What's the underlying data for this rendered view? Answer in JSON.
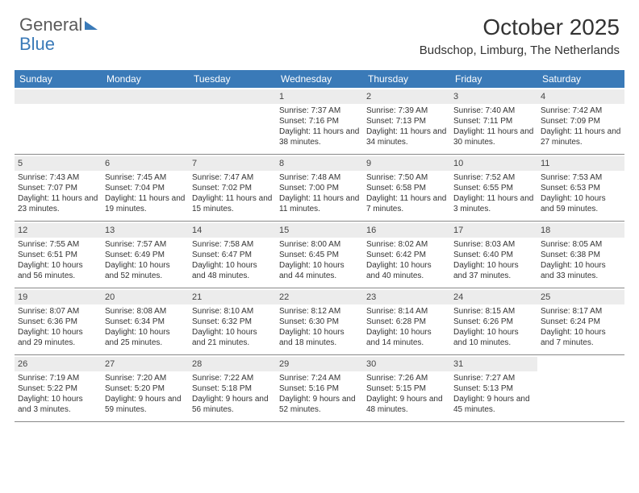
{
  "logo": {
    "text1": "General",
    "text2": "Blue"
  },
  "title": "October 2025",
  "location": "Budschop, Limburg, The Netherlands",
  "colors": {
    "header_bg": "#3a7ab8",
    "header_text": "#ffffff",
    "daynum_bg": "#ececec",
    "text": "#333333",
    "border": "#888888"
  },
  "dayNames": [
    "Sunday",
    "Monday",
    "Tuesday",
    "Wednesday",
    "Thursday",
    "Friday",
    "Saturday"
  ],
  "weeks": [
    [
      null,
      null,
      null,
      {
        "n": "1",
        "sr": "Sunrise: 7:37 AM",
        "ss": "Sunset: 7:16 PM",
        "dl": "Daylight: 11 hours and 38 minutes."
      },
      {
        "n": "2",
        "sr": "Sunrise: 7:39 AM",
        "ss": "Sunset: 7:13 PM",
        "dl": "Daylight: 11 hours and 34 minutes."
      },
      {
        "n": "3",
        "sr": "Sunrise: 7:40 AM",
        "ss": "Sunset: 7:11 PM",
        "dl": "Daylight: 11 hours and 30 minutes."
      },
      {
        "n": "4",
        "sr": "Sunrise: 7:42 AM",
        "ss": "Sunset: 7:09 PM",
        "dl": "Daylight: 11 hours and 27 minutes."
      }
    ],
    [
      {
        "n": "5",
        "sr": "Sunrise: 7:43 AM",
        "ss": "Sunset: 7:07 PM",
        "dl": "Daylight: 11 hours and 23 minutes."
      },
      {
        "n": "6",
        "sr": "Sunrise: 7:45 AM",
        "ss": "Sunset: 7:04 PM",
        "dl": "Daylight: 11 hours and 19 minutes."
      },
      {
        "n": "7",
        "sr": "Sunrise: 7:47 AM",
        "ss": "Sunset: 7:02 PM",
        "dl": "Daylight: 11 hours and 15 minutes."
      },
      {
        "n": "8",
        "sr": "Sunrise: 7:48 AM",
        "ss": "Sunset: 7:00 PM",
        "dl": "Daylight: 11 hours and 11 minutes."
      },
      {
        "n": "9",
        "sr": "Sunrise: 7:50 AM",
        "ss": "Sunset: 6:58 PM",
        "dl": "Daylight: 11 hours and 7 minutes."
      },
      {
        "n": "10",
        "sr": "Sunrise: 7:52 AM",
        "ss": "Sunset: 6:55 PM",
        "dl": "Daylight: 11 hours and 3 minutes."
      },
      {
        "n": "11",
        "sr": "Sunrise: 7:53 AM",
        "ss": "Sunset: 6:53 PM",
        "dl": "Daylight: 10 hours and 59 minutes."
      }
    ],
    [
      {
        "n": "12",
        "sr": "Sunrise: 7:55 AM",
        "ss": "Sunset: 6:51 PM",
        "dl": "Daylight: 10 hours and 56 minutes."
      },
      {
        "n": "13",
        "sr": "Sunrise: 7:57 AM",
        "ss": "Sunset: 6:49 PM",
        "dl": "Daylight: 10 hours and 52 minutes."
      },
      {
        "n": "14",
        "sr": "Sunrise: 7:58 AM",
        "ss": "Sunset: 6:47 PM",
        "dl": "Daylight: 10 hours and 48 minutes."
      },
      {
        "n": "15",
        "sr": "Sunrise: 8:00 AM",
        "ss": "Sunset: 6:45 PM",
        "dl": "Daylight: 10 hours and 44 minutes."
      },
      {
        "n": "16",
        "sr": "Sunrise: 8:02 AM",
        "ss": "Sunset: 6:42 PM",
        "dl": "Daylight: 10 hours and 40 minutes."
      },
      {
        "n": "17",
        "sr": "Sunrise: 8:03 AM",
        "ss": "Sunset: 6:40 PM",
        "dl": "Daylight: 10 hours and 37 minutes."
      },
      {
        "n": "18",
        "sr": "Sunrise: 8:05 AM",
        "ss": "Sunset: 6:38 PM",
        "dl": "Daylight: 10 hours and 33 minutes."
      }
    ],
    [
      {
        "n": "19",
        "sr": "Sunrise: 8:07 AM",
        "ss": "Sunset: 6:36 PM",
        "dl": "Daylight: 10 hours and 29 minutes."
      },
      {
        "n": "20",
        "sr": "Sunrise: 8:08 AM",
        "ss": "Sunset: 6:34 PM",
        "dl": "Daylight: 10 hours and 25 minutes."
      },
      {
        "n": "21",
        "sr": "Sunrise: 8:10 AM",
        "ss": "Sunset: 6:32 PM",
        "dl": "Daylight: 10 hours and 21 minutes."
      },
      {
        "n": "22",
        "sr": "Sunrise: 8:12 AM",
        "ss": "Sunset: 6:30 PM",
        "dl": "Daylight: 10 hours and 18 minutes."
      },
      {
        "n": "23",
        "sr": "Sunrise: 8:14 AM",
        "ss": "Sunset: 6:28 PM",
        "dl": "Daylight: 10 hours and 14 minutes."
      },
      {
        "n": "24",
        "sr": "Sunrise: 8:15 AM",
        "ss": "Sunset: 6:26 PM",
        "dl": "Daylight: 10 hours and 10 minutes."
      },
      {
        "n": "25",
        "sr": "Sunrise: 8:17 AM",
        "ss": "Sunset: 6:24 PM",
        "dl": "Daylight: 10 hours and 7 minutes."
      }
    ],
    [
      {
        "n": "26",
        "sr": "Sunrise: 7:19 AM",
        "ss": "Sunset: 5:22 PM",
        "dl": "Daylight: 10 hours and 3 minutes."
      },
      {
        "n": "27",
        "sr": "Sunrise: 7:20 AM",
        "ss": "Sunset: 5:20 PM",
        "dl": "Daylight: 9 hours and 59 minutes."
      },
      {
        "n": "28",
        "sr": "Sunrise: 7:22 AM",
        "ss": "Sunset: 5:18 PM",
        "dl": "Daylight: 9 hours and 56 minutes."
      },
      {
        "n": "29",
        "sr": "Sunrise: 7:24 AM",
        "ss": "Sunset: 5:16 PM",
        "dl": "Daylight: 9 hours and 52 minutes."
      },
      {
        "n": "30",
        "sr": "Sunrise: 7:26 AM",
        "ss": "Sunset: 5:15 PM",
        "dl": "Daylight: 9 hours and 48 minutes."
      },
      {
        "n": "31",
        "sr": "Sunrise: 7:27 AM",
        "ss": "Sunset: 5:13 PM",
        "dl": "Daylight: 9 hours and 45 minutes."
      },
      null
    ]
  ]
}
